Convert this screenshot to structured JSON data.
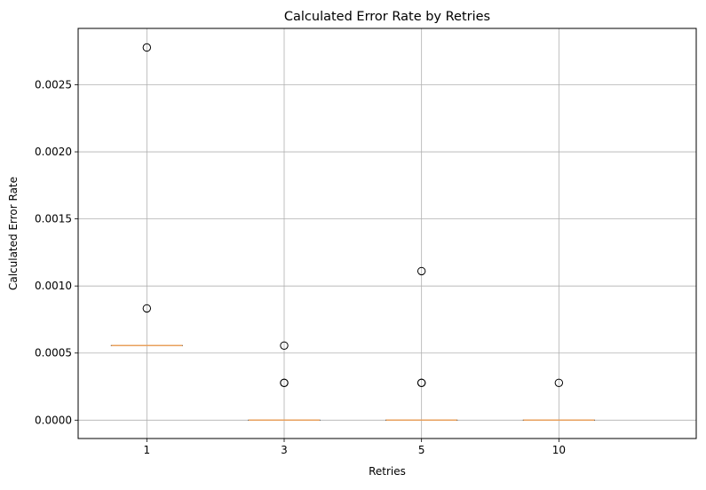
{
  "chart_data": {
    "type": "box",
    "title": "Calculated Error Rate by Retries",
    "xlabel": "Retries",
    "ylabel": "Calculated Error Rate",
    "categories": [
      "1",
      "3",
      "5",
      "10"
    ],
    "ylim": [
      -0.000137,
      0.00292
    ],
    "yticks": [
      0.0,
      0.0005,
      0.001,
      0.0015,
      0.002,
      0.0025
    ],
    "ytick_labels": [
      "0.0000",
      "0.0005",
      "0.0010",
      "0.0015",
      "0.0020",
      "0.0025"
    ],
    "grid": true,
    "boxes": [
      {
        "category": "1",
        "q1": 0.000556,
        "median": 0.000556,
        "q3": 0.000556,
        "whisker_low": 0.000556,
        "whisker_high": 0.000556,
        "fliers": [
          0.000833,
          0.002778
        ]
      },
      {
        "category": "3",
        "q1": 0.0,
        "median": 0.0,
        "q3": 0.0,
        "whisker_low": 0.0,
        "whisker_high": 0.0,
        "fliers": [
          0.000278,
          0.000278,
          0.000556
        ]
      },
      {
        "category": "5",
        "q1": 0.0,
        "median": 0.0,
        "q3": 0.0,
        "whisker_low": 0.0,
        "whisker_high": 0.0,
        "fliers": [
          0.000278,
          0.000278,
          0.001111
        ]
      },
      {
        "category": "10",
        "q1": 0.0,
        "median": 0.0,
        "q3": 0.0,
        "whisker_low": 0.0,
        "whisker_high": 0.0,
        "fliers": [
          0.000278
        ]
      }
    ],
    "colors": {
      "median": "#e8a05c",
      "box": "#000000",
      "grid": "#b0b0b0",
      "flier": "#000000"
    }
  }
}
